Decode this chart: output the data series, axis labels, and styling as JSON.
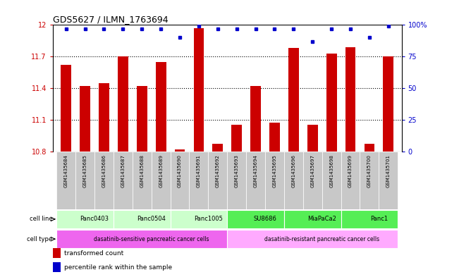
{
  "title": "GDS5627 / ILMN_1763694",
  "samples": [
    "GSM1435684",
    "GSM1435685",
    "GSM1435686",
    "GSM1435687",
    "GSM1435688",
    "GSM1435689",
    "GSM1435690",
    "GSM1435691",
    "GSM1435692",
    "GSM1435693",
    "GSM1435694",
    "GSM1435695",
    "GSM1435696",
    "GSM1435697",
    "GSM1435698",
    "GSM1435699",
    "GSM1435700",
    "GSM1435701"
  ],
  "bar_values": [
    11.62,
    11.42,
    11.45,
    11.7,
    11.42,
    11.65,
    10.82,
    11.97,
    10.87,
    11.05,
    11.42,
    11.07,
    11.78,
    11.05,
    11.73,
    11.79,
    10.87,
    11.7
  ],
  "percentile_values": [
    97,
    97,
    97,
    97,
    97,
    97,
    90,
    99,
    97,
    97,
    97,
    97,
    97,
    87,
    97,
    97,
    90,
    99
  ],
  "bar_color": "#cc0000",
  "dot_color": "#0000cc",
  "ylim_left": [
    10.8,
    12.0
  ],
  "yticks_left": [
    10.8,
    11.1,
    11.4,
    11.7,
    12.0
  ],
  "ytick_labels_left": [
    "10.8",
    "11.1",
    "11.4",
    "11.7",
    "12"
  ],
  "ylim_right": [
    0,
    100
  ],
  "yticks_right": [
    0,
    25,
    50,
    75,
    100
  ],
  "ytick_labels_right": [
    "0",
    "25",
    "50",
    "75",
    "100%"
  ],
  "cell_lines": [
    {
      "label": "Panc0403",
      "start": 0,
      "end": 3,
      "color": "#ccffcc"
    },
    {
      "label": "Panc0504",
      "start": 3,
      "end": 6,
      "color": "#ccffcc"
    },
    {
      "label": "Panc1005",
      "start": 6,
      "end": 9,
      "color": "#ccffcc"
    },
    {
      "label": "SU8686",
      "start": 9,
      "end": 12,
      "color": "#55ee55"
    },
    {
      "label": "MiaPaCa2",
      "start": 12,
      "end": 15,
      "color": "#55ee55"
    },
    {
      "label": "Panc1",
      "start": 15,
      "end": 18,
      "color": "#55ee55"
    }
  ],
  "cell_types": [
    {
      "label": "dasatinib-sensitive pancreatic cancer cells",
      "start": 0,
      "end": 9,
      "color": "#ee66ee"
    },
    {
      "label": "dasatinib-resistant pancreatic cancer cells",
      "start": 9,
      "end": 18,
      "color": "#ffaaff"
    }
  ],
  "legend_items": [
    {
      "color": "#cc0000",
      "label": "transformed count"
    },
    {
      "color": "#0000cc",
      "label": "percentile rank within the sample"
    }
  ],
  "bg_color": "#ffffff",
  "sample_bg_color": "#c8c8c8",
  "bar_width": 0.55
}
